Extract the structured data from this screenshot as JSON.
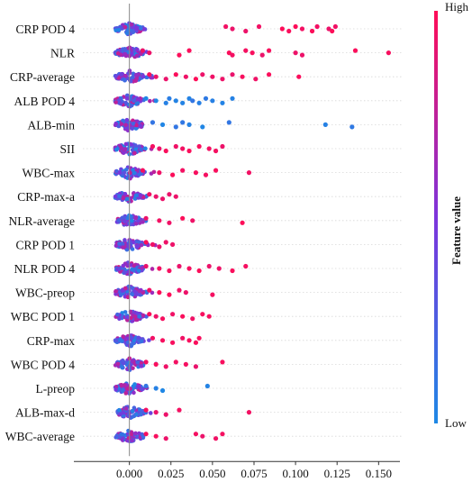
{
  "chart_data": {
    "type": "scatter",
    "subtype": "shap-beeswarm",
    "xlabel": "",
    "x_range": [
      -0.028,
      0.165
    ],
    "x_ticks": [
      0.0,
      0.025,
      0.05,
      0.075,
      0.1,
      0.125,
      0.15
    ],
    "x_tick_labels": [
      "0.000",
      "0.025",
      "0.050",
      "0.075",
      "0.100",
      "0.125",
      "0.150"
    ],
    "colorbar": {
      "title": "Feature value",
      "high_label": "High",
      "low_label": "Low",
      "low_color": "#1e88e5",
      "high_color": "#ff0d57"
    },
    "grid": "horizontal dotted",
    "features": [
      {
        "name": "CRP POD 4",
        "high_points": [
          0.058,
          0.062,
          0.07,
          0.078,
          0.092,
          0.096,
          0.1,
          0.104,
          0.11,
          0.113,
          0.12,
          0.122,
          0.124
        ]
      },
      {
        "name": "NLR",
        "high_points": [
          0.008,
          0.012,
          0.03,
          0.036,
          0.06,
          0.062,
          0.07,
          0.074,
          0.08,
          0.084,
          0.1,
          0.104,
          0.136,
          0.156
        ]
      },
      {
        "name": "CRP-average",
        "high_points": [
          0.012,
          0.016,
          0.022,
          0.028,
          0.034,
          0.04,
          0.044,
          0.05,
          0.056,
          0.062,
          0.068,
          0.076,
          0.084,
          0.102
        ]
      },
      {
        "name": "ALB POD 4",
        "low_points": [
          0.01,
          0.016,
          0.022,
          0.024,
          0.028,
          0.032,
          0.036,
          0.038,
          0.042,
          0.046,
          0.05,
          0.056,
          0.062
        ]
      },
      {
        "name": "ALB-min",
        "low_points": [
          0.014,
          0.02,
          0.028,
          0.032,
          0.036,
          0.044,
          0.06,
          0.118,
          0.134
        ]
      },
      {
        "name": "SII",
        "high_points": [
          0.014,
          0.018,
          0.022,
          0.028,
          0.032,
          0.036,
          0.042,
          0.048,
          0.052,
          0.056
        ]
      },
      {
        "name": "WBC-max",
        "high_points": [
          0.008,
          0.018,
          0.026,
          0.032,
          0.04,
          0.046,
          0.052,
          0.072
        ]
      },
      {
        "name": "CRP-max-a",
        "high_points": [
          0.012,
          0.016,
          0.02,
          0.024,
          0.028
        ]
      },
      {
        "name": "NLR-average",
        "high_points": [
          0.01,
          0.018,
          0.024,
          0.032,
          0.038,
          0.068
        ]
      },
      {
        "name": "CRP POD 1",
        "high_points": [
          0.01,
          0.014,
          0.018,
          0.022,
          0.026
        ]
      },
      {
        "name": "NLR POD 4",
        "high_points": [
          0.01,
          0.018,
          0.024,
          0.03,
          0.036,
          0.042,
          0.048,
          0.054,
          0.062,
          0.07
        ]
      },
      {
        "name": "WBC-preop",
        "high_points": [
          0.012,
          0.018,
          0.024,
          0.03,
          0.034,
          0.05
        ]
      },
      {
        "name": "WBC POD 1",
        "high_points": [
          0.012,
          0.016,
          0.02,
          0.026,
          0.032,
          0.038,
          0.044,
          0.048
        ]
      },
      {
        "name": "CRP-max",
        "high_points": [
          0.014,
          0.02,
          0.026,
          0.032,
          0.036,
          0.04,
          0.042
        ]
      },
      {
        "name": "WBC POD 4",
        "high_points": [
          0.01,
          0.016,
          0.022,
          0.028,
          0.034,
          0.04,
          0.056
        ]
      },
      {
        "name": "L-preop",
        "low_points": [
          0.01,
          0.016,
          0.02,
          0.047
        ]
      },
      {
        "name": "ALB-max-d",
        "high_points": [
          0.01,
          0.016,
          0.022,
          0.03,
          0.072
        ]
      },
      {
        "name": "WBC-average",
        "high_points": [
          0.01,
          0.016,
          0.022,
          0.04,
          0.044,
          0.052,
          0.056
        ]
      }
    ]
  }
}
